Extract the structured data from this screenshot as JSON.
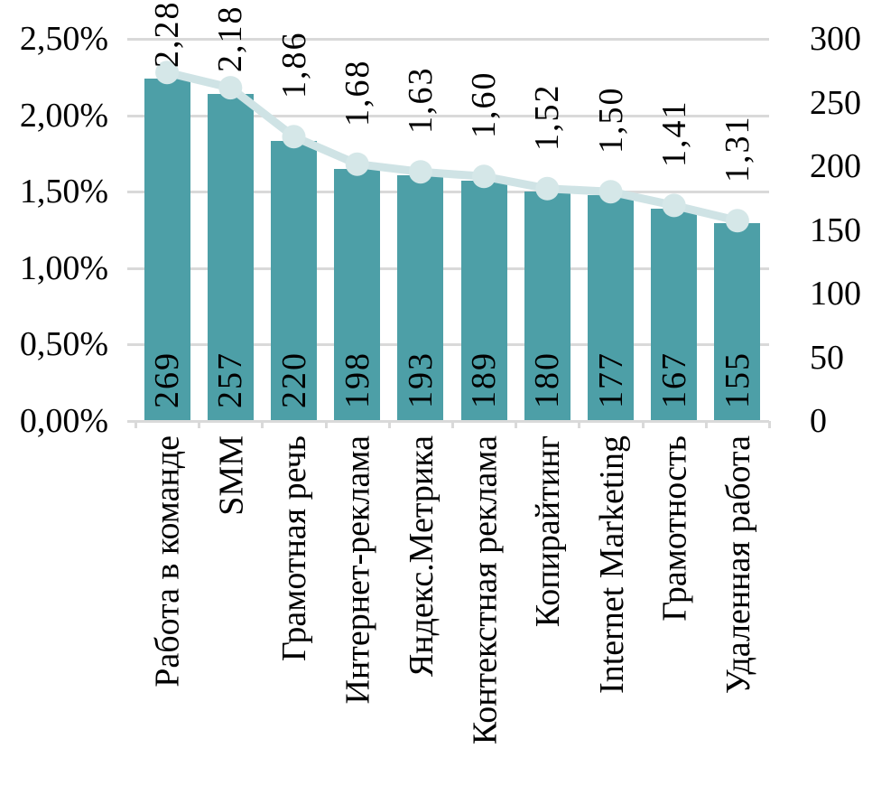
{
  "chart_data": {
    "type": "combo-bar-line",
    "title": "",
    "categories": [
      "Работа в команде",
      "SMM",
      "Грамотная речь",
      "Интернет-реклама",
      "Яндекс.Метрика",
      "Контекстная реклама",
      "Копирайтинг",
      "Internet Marketing",
      "Грамотность",
      "Удаленная работа"
    ],
    "series": [
      {
        "type": "bar",
        "axis": "right",
        "values": [
          269,
          257,
          220,
          198,
          193,
          189,
          180,
          177,
          167,
          155
        ],
        "data_labels": [
          "269",
          "257",
          "220",
          "198",
          "193",
          "189",
          "180",
          "177",
          "167",
          "155"
        ],
        "label_position": "inside-base",
        "color": "#4D9FA7"
      },
      {
        "type": "line",
        "axis": "left",
        "values": [
          2.28,
          2.18,
          1.86,
          1.68,
          1.63,
          1.6,
          1.52,
          1.5,
          1.41,
          1.31
        ],
        "data_labels": [
          "2,28",
          "2,18",
          "1,86",
          "1,68",
          "1,63",
          "1,60",
          "1,52",
          "1,50",
          "1,41",
          "1,31"
        ],
        "label_position": "above",
        "color": "#CFE3E5",
        "marker_color": "#D5E7E8"
      }
    ],
    "left_axis": {
      "min": 0,
      "max": 2.5,
      "step": 0.5,
      "tick_labels": [
        "2,50%",
        "2,00%",
        "1,50%",
        "1,00%",
        "0,50%",
        "0,00%"
      ]
    },
    "right_axis": {
      "min": 0,
      "max": 300,
      "step": 50,
      "tick_labels": [
        "300",
        "250",
        "200",
        "150",
        "100",
        "50",
        "0"
      ]
    },
    "gridlines": {
      "horizontal": true,
      "color": "#D9D9D9"
    },
    "text_color": "#000000",
    "background": "#FFFFFF"
  }
}
